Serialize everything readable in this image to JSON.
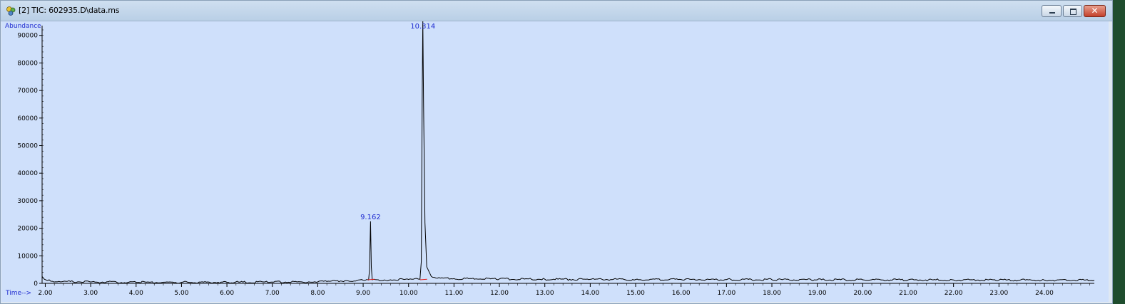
{
  "window": {
    "title": "[2] TIC: 602935.D\\data.ms",
    "icon": "chromatogram-app-icon",
    "controls": {
      "minimize": "minimize-icon",
      "maximize": "maximize-icon",
      "close": "close-icon"
    }
  },
  "chart_data": {
    "type": "line",
    "title": "",
    "ylabel": "Abundance",
    "xlabel": "Time-->",
    "xlim": [
      1.93,
      25.1
    ],
    "ylim": [
      0,
      92000
    ],
    "x_ticks": [
      "2.00",
      "3.00",
      "4.00",
      "5.00",
      "6.00",
      "7.00",
      "8.00",
      "9.00",
      "10.00",
      "11.00",
      "12.00",
      "13.00",
      "14.00",
      "15.00",
      "16.00",
      "17.00",
      "18.00",
      "19.00",
      "20.00",
      "21.00",
      "22.00",
      "23.00",
      "24.00"
    ],
    "y_ticks": [
      "0",
      "10000",
      "20000",
      "30000",
      "40000",
      "50000",
      "60000",
      "70000",
      "80000",
      "90000"
    ],
    "series": [
      {
        "color": "#000000",
        "points": [
          [
            1.93,
            2500
          ],
          [
            1.98,
            1500
          ],
          [
            2.05,
            1000
          ],
          [
            2.3,
            700
          ],
          [
            3.0,
            500
          ],
          [
            4.0,
            400
          ],
          [
            5.0,
            380
          ],
          [
            6.0,
            400
          ],
          [
            7.0,
            450
          ],
          [
            7.8,
            550
          ],
          [
            8.2,
            700
          ],
          [
            8.6,
            950
          ],
          [
            9.0,
            1150
          ],
          [
            9.12,
            1250
          ],
          [
            9.14,
            5000
          ],
          [
            9.162,
            22500
          ],
          [
            9.18,
            6000
          ],
          [
            9.2,
            1300
          ],
          [
            9.6,
            1300
          ],
          [
            10.0,
            1400
          ],
          [
            10.25,
            1500
          ],
          [
            10.28,
            8000
          ],
          [
            10.3,
            66000
          ],
          [
            10.314,
            96000
          ],
          [
            10.33,
            66000
          ],
          [
            10.36,
            22000
          ],
          [
            10.4,
            6000
          ],
          [
            10.5,
            2500
          ],
          [
            10.7,
            1900
          ],
          [
            11.0,
            1700
          ],
          [
            12.0,
            1600
          ],
          [
            13.0,
            1500
          ],
          [
            14.0,
            1450
          ],
          [
            15.0,
            1400
          ],
          [
            16.0,
            1400
          ],
          [
            17.0,
            1380
          ],
          [
            18.0,
            1350
          ],
          [
            19.0,
            1300
          ],
          [
            20.0,
            1300
          ],
          [
            21.0,
            1250
          ],
          [
            22.0,
            1250
          ],
          [
            23.0,
            1200
          ],
          [
            24.0,
            1200
          ],
          [
            25.1,
            1150
          ]
        ]
      }
    ],
    "peaks": [
      {
        "label": "9.162",
        "x": 9.162,
        "y": 22500
      },
      {
        "label": "10.314",
        "x": 10.314,
        "y": 96000
      }
    ],
    "grid": false,
    "legend": "none"
  }
}
